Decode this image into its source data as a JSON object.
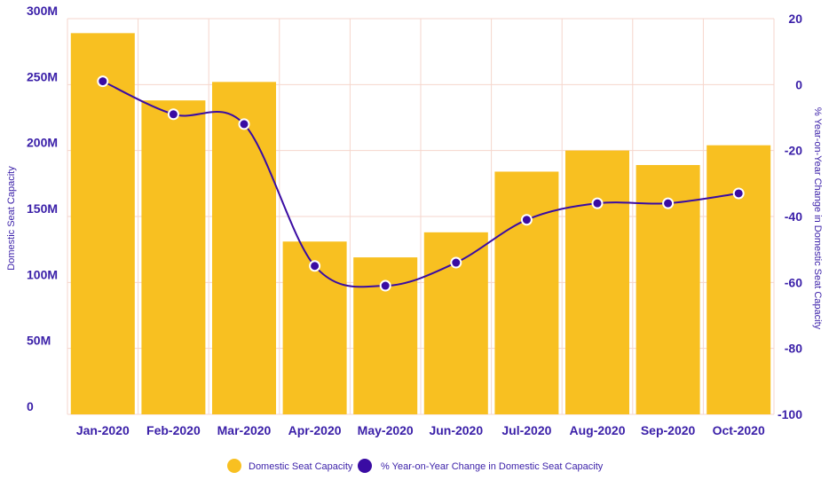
{
  "chart_data": {
    "type": "bar+line",
    "title": "",
    "categories": [
      "Jan-2020",
      "Feb-2020",
      "Mar-2020",
      "Apr-2020",
      "May-2020",
      "Jun-2020",
      "Jul-2020",
      "Aug-2020",
      "Sep-2020",
      "Oct-2020"
    ],
    "series": [
      {
        "name": "Domestic Seat Capacity",
        "type": "bar",
        "axis": "left",
        "color": "#f8c021",
        "values": [
          289000000,
          238000000,
          252000000,
          131000000,
          119000000,
          138000000,
          184000000,
          200000000,
          189000000,
          204000000
        ]
      },
      {
        "name": "% Year-on-Year Change in Domestic Seat Capacity",
        "type": "line",
        "axis": "right",
        "color": "#3a0ca3",
        "values": [
          1,
          -9,
          -12,
          -55,
          -61,
          -54,
          -41,
          -36,
          -36,
          -33
        ]
      }
    ],
    "y_left": {
      "label": "Domestic Seat Capacity",
      "range": [
        0,
        300000000
      ],
      "ticks": [
        0,
        50000000,
        100000000,
        150000000,
        200000000,
        250000000,
        300000000
      ],
      "tick_labels": [
        "0",
        "50M",
        "100M",
        "150M",
        "200M",
        "250M",
        "300M"
      ]
    },
    "y_right": {
      "label": "% Year-on-Year Change in Domestic Seat Capacity",
      "range": [
        -100,
        20
      ],
      "ticks": [
        -100,
        -80,
        -60,
        -40,
        -20,
        0,
        20
      ],
      "tick_labels": [
        "-100",
        "-80",
        "-60",
        "-40",
        "-20",
        "0",
        "20"
      ]
    },
    "grid": true,
    "legend": "bottom-center",
    "grid_color": "#f6d6cc",
    "text_color": "#3a1fa8"
  }
}
